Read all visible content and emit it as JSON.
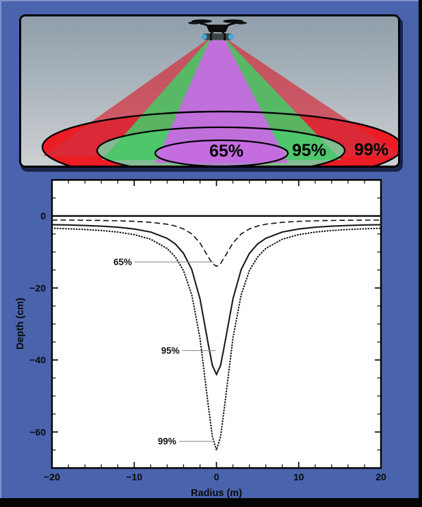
{
  "top_panel": {
    "labels": {
      "inner": "65%",
      "middle": "95%",
      "outer": "99%"
    },
    "drone_icon": "quadcopter-drone-with-sensor-cylinder",
    "colors": {
      "sky_top": "#8f9eaa",
      "sky_bottom": "#cdd0d2",
      "ellipse_red": "#ec1c24",
      "ellipse_green": "#85bb92",
      "ellipse_purple": "#ab89c6",
      "beam_red": "rgba(210,48,62,0.72)",
      "beam_green": "rgba(72,198,102,0.88)",
      "beam_purple": "rgba(198,108,226,0.95)",
      "outline": "#000000",
      "drone_body": "#0d0d0d",
      "sensor_cylinder": "#3a4742",
      "sensor_caps": "#45a7dd"
    }
  },
  "chart_data": {
    "type": "line",
    "title": "",
    "xlabel": "Radius (m)",
    "ylabel": "Depth (cm)",
    "xlim": [
      -20,
      20
    ],
    "ylim": [
      -70,
      10
    ],
    "grid": false,
    "legend_position": "none",
    "zero_line_depth": 0,
    "x_ticks": {
      "values": [
        -20,
        -10,
        0,
        10,
        20
      ],
      "labels": [
        "−20",
        "−10",
        "0",
        "10",
        "20"
      ]
    },
    "y_ticks": {
      "values": [
        0,
        -20,
        -40,
        -60
      ],
      "labels": [
        "0",
        "−20",
        "−40",
        "−60"
      ]
    },
    "x_minor_step": 2,
    "y_minor_step": 5,
    "line_color": "#1a1a1a",
    "annotation_line_color": "#8f8f8f",
    "x": [
      -20,
      -18,
      -16,
      -14,
      -12,
      -10,
      -8,
      -6,
      -5,
      -4,
      -3,
      -2,
      -1,
      -0.5,
      0,
      0.5,
      1,
      2,
      3,
      4,
      5,
      6,
      8,
      10,
      12,
      14,
      16,
      18,
      20
    ],
    "series": [
      {
        "name": "65%",
        "style": "dashed",
        "peak_depth_cm": -14,
        "values": [
          -1.13,
          -1.16,
          -1.2,
          -1.26,
          -1.35,
          -1.5,
          -1.76,
          -2.3,
          -2.79,
          -3.6,
          -5.0,
          -7.5,
          -11.4,
          -13.2,
          -14,
          -13.2,
          -11.4,
          -7.5,
          -5.0,
          -3.6,
          -2.79,
          -2.3,
          -1.76,
          -1.5,
          -1.35,
          -1.26,
          -1.2,
          -1.16,
          -1.13
        ]
      },
      {
        "name": "95%",
        "style": "solid",
        "peak_depth_cm": -44,
        "values": [
          -2.42,
          -2.51,
          -2.65,
          -2.84,
          -3.14,
          -3.62,
          -4.47,
          -6.2,
          -7.79,
          -10.4,
          -14.9,
          -23,
          -35.6,
          -41.5,
          -44,
          -41.5,
          -35.6,
          -23,
          -14.9,
          -10.4,
          -7.79,
          -6.2,
          -4.47,
          -3.62,
          -3.14,
          -2.84,
          -2.65,
          -2.51,
          -2.42
        ]
      },
      {
        "name": "99%",
        "style": "dotted",
        "peak_depth_cm": -65,
        "values": [
          -3.42,
          -3.56,
          -3.76,
          -4.04,
          -4.48,
          -5.19,
          -6.46,
          -9.02,
          -11.4,
          -15.2,
          -21.9,
          -33.9,
          -52.6,
          -61.3,
          -65,
          -61.3,
          -52.6,
          -33.9,
          -21.9,
          -15.2,
          -11.4,
          -9.02,
          -6.46,
          -5.19,
          -4.48,
          -4.04,
          -3.76,
          -3.56,
          -3.42
        ]
      }
    ],
    "annotations": [
      {
        "label": "65%",
        "y": -12.8,
        "line_from_x": -9.95,
        "line_to_x": -0.3
      },
      {
        "label": "95%",
        "y": -37.4,
        "line_from_x": -4.15,
        "line_to_x": -0.1
      },
      {
        "label": "99%",
        "y": -62.6,
        "line_from_x": -4.55,
        "line_to_x": -0.5
      }
    ]
  },
  "frame": {
    "background": "#050505",
    "panel_blue": "#4a63ad",
    "panel_blue_highlight": "#7e90cb",
    "plot_background": "#ffffff"
  }
}
